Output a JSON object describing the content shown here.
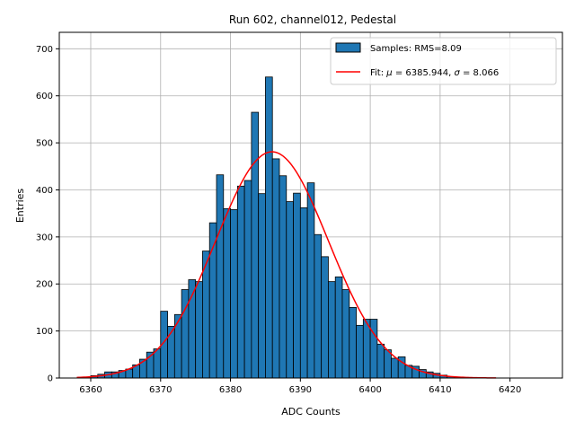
{
  "chart_data": {
    "type": "bar",
    "title": "Run 602, channel012, Pedestal",
    "xlabel": "ADC Counts",
    "ylabel": "Entries",
    "xlim": [
      6355.5,
      6427.5
    ],
    "ylim": [
      0,
      735
    ],
    "xticks": [
      6360,
      6370,
      6380,
      6390,
      6400,
      6410,
      6420
    ],
    "yticks": [
      0,
      100,
      200,
      300,
      400,
      500,
      600,
      700
    ],
    "grid": true,
    "legend_position": "top-right",
    "legend": {
      "hist_label": "Samples: RMS=8.09",
      "fit_label_prefix": "Fit: ",
      "fit_label_mu": "μ",
      "fit_label_mid": " = 6385.944, ",
      "fit_label_sigma": "σ",
      "fit_label_end": " = 8.066"
    },
    "histogram": {
      "bin_width": 1,
      "bin_start": 6359,
      "counts": [
        1,
        5,
        8,
        13,
        13,
        16,
        19,
        28,
        40,
        55,
        62,
        142,
        110,
        135,
        188,
        209,
        205,
        270,
        330,
        432,
        360,
        358,
        408,
        420,
        565,
        392,
        640,
        466,
        430,
        375,
        393,
        362,
        415,
        305,
        258,
        205,
        215,
        188,
        150,
        112,
        125,
        125,
        72,
        60,
        42,
        45,
        27,
        25,
        18,
        13,
        10,
        6,
        3,
        2,
        1,
        1,
        1
      ],
      "color": "#1f77b4",
      "edgecolor": "#000000"
    },
    "fit": {
      "mu": 6385.944,
      "sigma": 8.066,
      "amplitude": 481,
      "x_range": [
        6358,
        6418
      ],
      "color": "#ff0000"
    }
  }
}
